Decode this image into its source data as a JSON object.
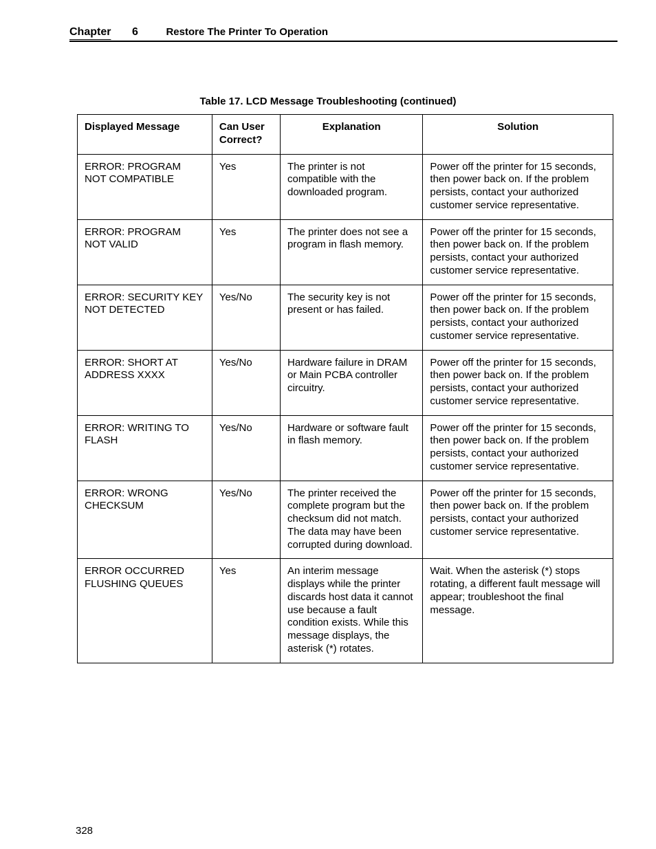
{
  "header": {
    "chapter_label": "Chapter",
    "chapter_number": "6",
    "section_title": "Restore The Printer To Operation"
  },
  "table": {
    "caption": "Table 17. LCD Message Troubleshooting (continued)",
    "columns": [
      "Displayed Message",
      "Can User Correct?",
      "Explanation",
      "Solution"
    ],
    "rows": [
      {
        "message": "ERROR: PROGRAM NOT COMPATIBLE",
        "can_user": "Yes",
        "explanation": "The printer is not compatible with the downloaded program.",
        "solution": "Power off the printer for 15 seconds, then power back on. If the problem persists, contact your authorized customer service representative."
      },
      {
        "message": "ERROR: PROGRAM NOT VALID",
        "can_user": "Yes",
        "explanation": "The printer does not see a program in flash memory.",
        "solution": "Power off the printer for 15 seconds, then power back on. If the problem persists, contact your authorized customer service representative."
      },
      {
        "message": "ERROR: SECURITY KEY NOT DETECTED",
        "can_user": "Yes/No",
        "explanation": "The security key is not present or has failed.",
        "solution": "Power off the printer for 15 seconds, then power back on. If the problem persists, contact your authorized customer service representative."
      },
      {
        "message": "ERROR: SHORT AT ADDRESS XXXX",
        "can_user": "Yes/No",
        "explanation": "Hardware failure in DRAM or Main PCBA controller circuitry.",
        "solution": "Power off the printer for 15 seconds, then power back on. If the problem persists, contact your authorized customer service representative."
      },
      {
        "message": "ERROR: WRITING TO FLASH",
        "can_user": "Yes/No",
        "explanation": "Hardware or software fault in flash memory.",
        "solution": "Power off the printer for 15 seconds, then power back on. If the problem persists, contact your authorized customer service representative."
      },
      {
        "message": "ERROR: WRONG CHECKSUM",
        "can_user": "Yes/No",
        "explanation": "The printer received the complete program but the checksum did not match. The data may have been corrupted during download.",
        "solution": "Power off the printer for 15 seconds, then power back on. If the problem persists, contact your authorized customer service representative."
      },
      {
        "message": "ERROR OCCURRED FLUSHING QUEUES",
        "can_user": "Yes",
        "explanation": "An interim message displays while the printer discards host data it cannot use because a fault condition exists. While this message displays, the asterisk (*) rotates.",
        "solution": "Wait. When the asterisk (*) stops rotating, a different fault message will appear; troubleshoot the final message."
      }
    ]
  },
  "page_number": "328"
}
